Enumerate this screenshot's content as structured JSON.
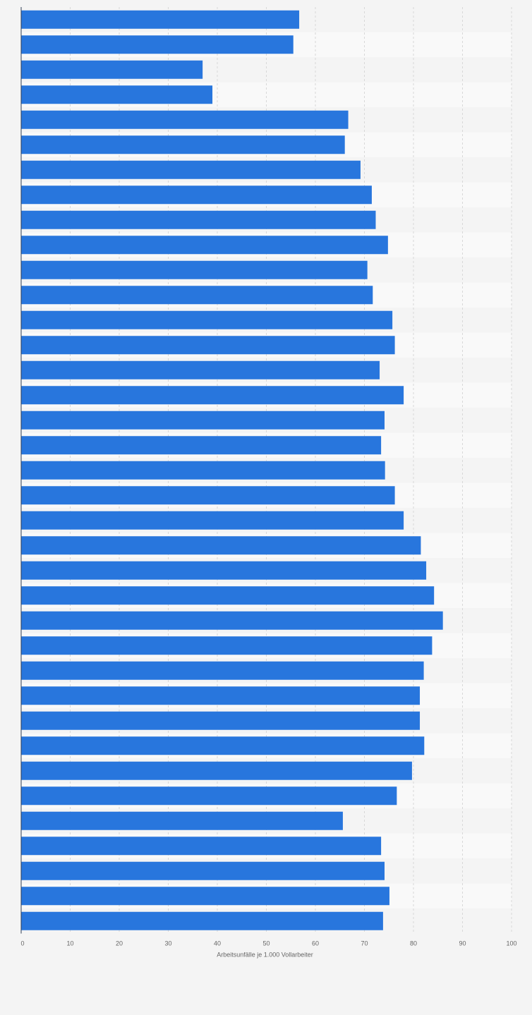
{
  "chart_data": {
    "type": "bar",
    "orientation": "horizontal",
    "title": "",
    "xlabel": "Arbeitsunfälle je 1.000 Vollarbeiter",
    "ylabel": "",
    "xlim": [
      0,
      100
    ],
    "x_ticks": [
      "0",
      "10",
      "20",
      "30",
      "40",
      "50",
      "60",
      "70",
      "80",
      "90",
      "100"
    ],
    "grid": "vertical dashed",
    "bar_color": "#2876dd",
    "values": [
      56.7,
      55.5,
      37.0,
      39.0,
      66.7,
      66.0,
      69.2,
      71.5,
      72.3,
      74.8,
      70.6,
      71.7,
      75.7,
      76.2,
      73.1,
      78.0,
      74.1,
      73.4,
      74.2,
      76.2,
      78.0,
      81.5,
      82.6,
      84.2,
      86.0,
      83.8,
      82.1,
      81.3,
      81.3,
      82.2,
      79.7,
      76.6,
      65.6,
      73.4,
      74.1,
      75.1,
      73.8
    ]
  }
}
